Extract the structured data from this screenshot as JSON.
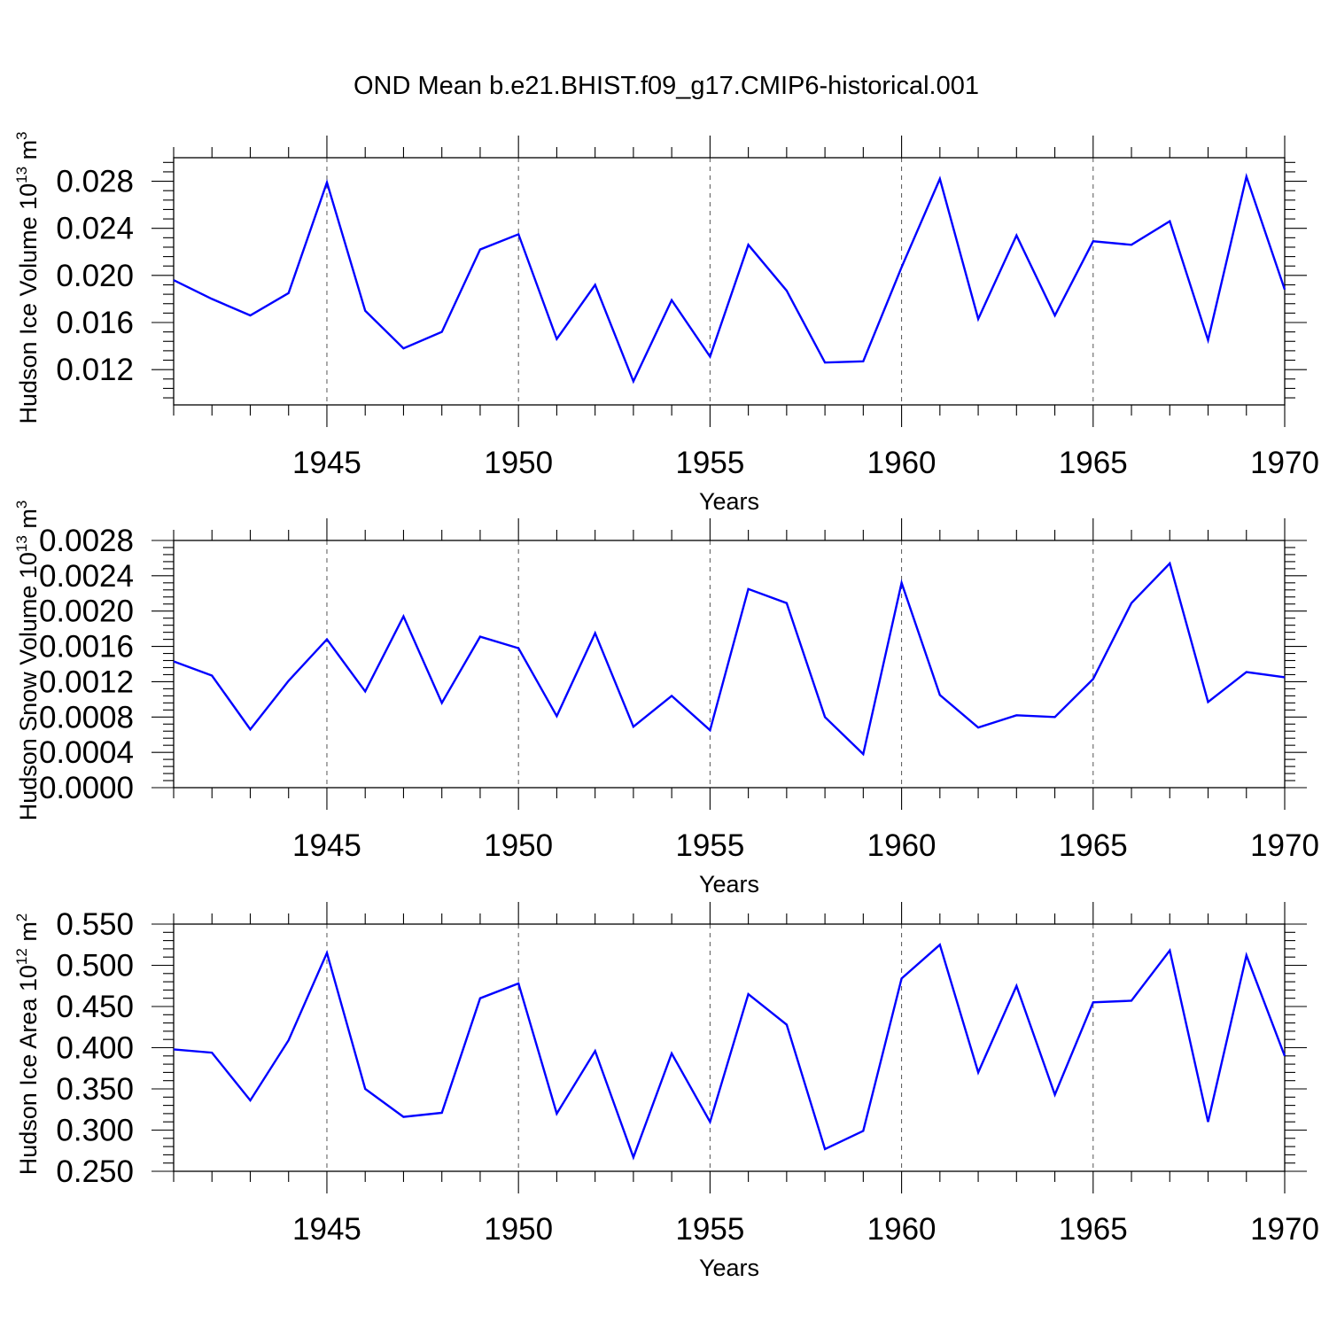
{
  "chart_data": [
    {
      "type": "line",
      "title": "OND Mean b.e21.BHIST.f09_g17.CMIP6-historical.001",
      "xlabel": "Years",
      "ylabel": "Hudson Ice Volume 10",
      "ylabel_exp": "13",
      "ylabel_unit": " m",
      "ylabel_unit_exp": "3",
      "xlim": [
        1941,
        1970
      ],
      "ylim": [
        0.009,
        0.03
      ],
      "xticks": [
        "1945",
        "1950",
        "1955",
        "1960",
        "1965",
        "1970"
      ],
      "yticks": [
        "0.012",
        "0.016",
        "0.020",
        "0.024",
        "0.028"
      ],
      "grid": "dashed vertical at major x ticks",
      "color": "#0000ff",
      "x": [
        1941,
        1942,
        1943,
        1944,
        1945,
        1946,
        1947,
        1948,
        1949,
        1950,
        1951,
        1952,
        1953,
        1954,
        1955,
        1956,
        1957,
        1958,
        1959,
        1960,
        1961,
        1962,
        1963,
        1964,
        1965,
        1966,
        1967,
        1968,
        1969,
        1970
      ],
      "values": [
        0.0196,
        0.018,
        0.0166,
        0.0185,
        0.0279,
        0.017,
        0.0138,
        0.0152,
        0.0222,
        0.0235,
        0.0146,
        0.0192,
        0.011,
        0.0179,
        0.0131,
        0.0226,
        0.0187,
        0.0126,
        0.0127,
        0.0207,
        0.0282,
        0.0163,
        0.0234,
        0.0166,
        0.0229,
        0.0226,
        0.0246,
        0.0145,
        0.0284,
        0.0188
      ]
    },
    {
      "type": "line",
      "title": "",
      "xlabel": "Years",
      "ylabel": "Hudson Snow Volume 10",
      "ylabel_exp": "13",
      "ylabel_unit": " m",
      "ylabel_unit_exp": "3",
      "xlim": [
        1941,
        1970
      ],
      "ylim": [
        0.0,
        0.0028
      ],
      "xticks": [
        "1945",
        "1950",
        "1955",
        "1960",
        "1965",
        "1970"
      ],
      "yticks": [
        "0.0000",
        "0.0004",
        "0.0008",
        "0.0012",
        "0.0016",
        "0.0020",
        "0.0024",
        "0.0028"
      ],
      "grid": "dashed vertical at major x ticks",
      "color": "#0000ff",
      "x": [
        1941,
        1942,
        1943,
        1944,
        1945,
        1946,
        1947,
        1948,
        1949,
        1950,
        1951,
        1952,
        1953,
        1954,
        1955,
        1956,
        1957,
        1958,
        1959,
        1960,
        1961,
        1962,
        1963,
        1964,
        1965,
        1966,
        1967,
        1968,
        1969,
        1970
      ],
      "values": [
        0.00143,
        0.00127,
        0.00066,
        0.00121,
        0.00168,
        0.00109,
        0.00194,
        0.00096,
        0.00171,
        0.00158,
        0.00081,
        0.00175,
        0.00069,
        0.00104,
        0.00065,
        0.00225,
        0.00209,
        0.0008,
        0.00038,
        0.00232,
        0.00105,
        0.00068,
        0.00082,
        0.0008,
        0.00123,
        0.00209,
        0.00254,
        0.00097,
        0.00131,
        0.00125
      ]
    },
    {
      "type": "line",
      "title": "",
      "xlabel": "Years",
      "ylabel": "Hudson Ice Area 10",
      "ylabel_exp": "12",
      "ylabel_unit": " m",
      "ylabel_unit_exp": "2",
      "xlim": [
        1941,
        1970
      ],
      "ylim": [
        0.25,
        0.55
      ],
      "xticks": [
        "1945",
        "1950",
        "1955",
        "1960",
        "1965",
        "1970"
      ],
      "yticks": [
        "0.250",
        "0.300",
        "0.350",
        "0.400",
        "0.450",
        "0.500",
        "0.550"
      ],
      "grid": "dashed vertical at major x ticks",
      "color": "#0000ff",
      "x": [
        1941,
        1942,
        1943,
        1944,
        1945,
        1946,
        1947,
        1948,
        1949,
        1950,
        1951,
        1952,
        1953,
        1954,
        1955,
        1956,
        1957,
        1958,
        1959,
        1960,
        1961,
        1962,
        1963,
        1964,
        1965,
        1966,
        1967,
        1968,
        1969,
        1970
      ],
      "values": [
        0.398,
        0.394,
        0.336,
        0.409,
        0.515,
        0.35,
        0.316,
        0.321,
        0.46,
        0.478,
        0.32,
        0.396,
        0.267,
        0.393,
        0.31,
        0.465,
        0.428,
        0.277,
        0.299,
        0.484,
        0.525,
        0.37,
        0.475,
        0.343,
        0.455,
        0.457,
        0.518,
        0.31,
        0.512,
        0.39
      ]
    }
  ]
}
